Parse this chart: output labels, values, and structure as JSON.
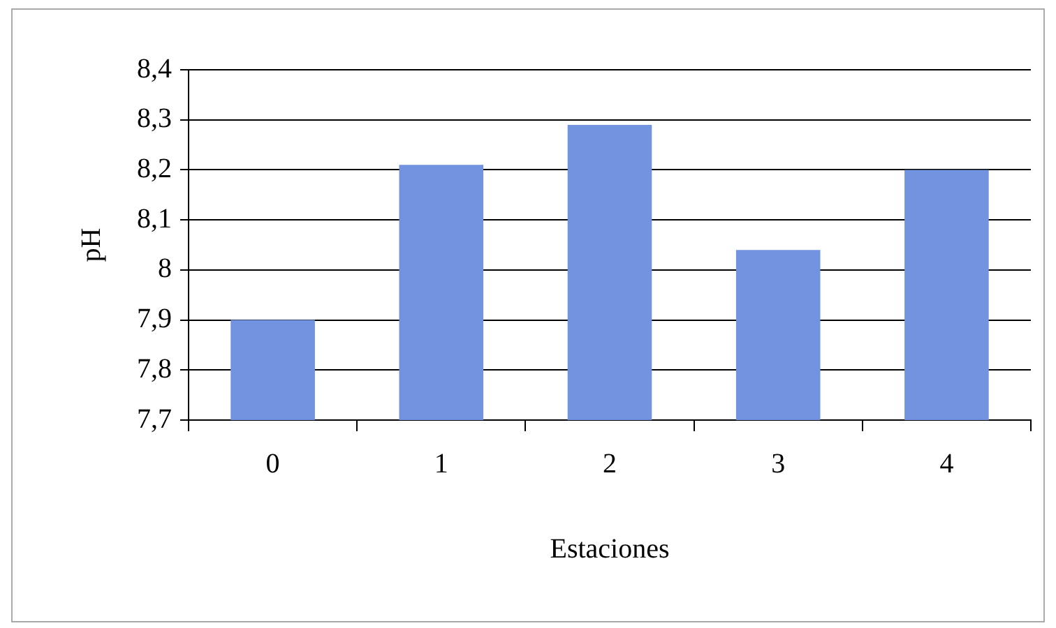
{
  "chart_data": {
    "type": "bar",
    "xlabel": "Estaciones",
    "ylabel": "pH",
    "categories": [
      "0",
      "1",
      "2",
      "3",
      "4"
    ],
    "values": [
      7.9,
      8.21,
      8.29,
      8.04,
      8.2
    ],
    "color": "#7293e0",
    "ylim": [
      7.7,
      8.4
    ],
    "yticks": [
      {
        "value": 7.7,
        "label": "7,7"
      },
      {
        "value": 7.8,
        "label": "7,8"
      },
      {
        "value": 7.9,
        "label": "7,9"
      },
      8,
      {
        "value": 8.1,
        "label": "8,1"
      },
      {
        "value": 8.2,
        "label": "8,2"
      },
      {
        "value": 8.3,
        "label": "8,3"
      },
      {
        "value": 8.4,
        "label": "8,4"
      }
    ],
    "grid": "y",
    "legend": false
  }
}
